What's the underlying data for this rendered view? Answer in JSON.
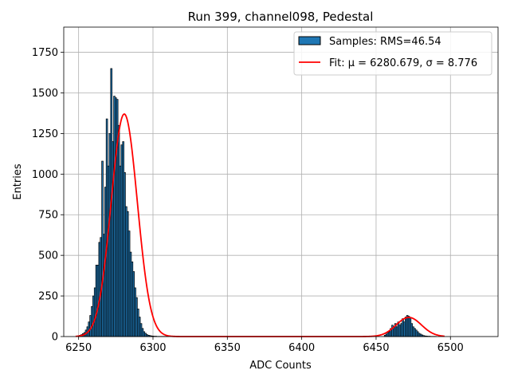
{
  "chart_data": {
    "type": "bar",
    "title": "Run 399, channel098, Pedestal",
    "xlabel": "ADC Counts",
    "ylabel": "Entries",
    "xlim": [
      6240,
      6532
    ],
    "ylim": [
      0,
      1905
    ],
    "xticks": [
      6250,
      6300,
      6350,
      6400,
      6450,
      6500
    ],
    "yticks": [
      0,
      250,
      500,
      750,
      1000,
      1250,
      1500,
      1750
    ],
    "grid": true,
    "legend_position": "top-right",
    "bar_color": "#1f77b4",
    "fit_color": "#ff0000",
    "bin_width": 1,
    "histogram": {
      "name": "Samples: RMS=46.54",
      "x": [
        6250,
        6251,
        6252,
        6253,
        6254,
        6255,
        6256,
        6257,
        6258,
        6259,
        6260,
        6261,
        6262,
        6263,
        6264,
        6265,
        6266,
        6267,
        6268,
        6269,
        6270,
        6271,
        6272,
        6273,
        6274,
        6275,
        6276,
        6277,
        6278,
        6279,
        6280,
        6281,
        6282,
        6283,
        6284,
        6285,
        6286,
        6287,
        6288,
        6289,
        6290,
        6291,
        6292,
        6293,
        6294,
        6295,
        6296,
        6297,
        6298,
        6299,
        6300,
        6301,
        6302,
        6303,
        6304,
        6305,
        6306,
        6307,
        6308,
        6309,
        6310,
        6456,
        6457,
        6458,
        6459,
        6460,
        6461,
        6462,
        6463,
        6464,
        6465,
        6466,
        6467,
        6468,
        6469,
        6470,
        6471,
        6472,
        6473,
        6474,
        6475,
        6476,
        6477,
        6478,
        6479,
        6480,
        6481,
        6482,
        6483,
        6484,
        6485,
        6486,
        6487,
        6488,
        6489,
        6490
      ],
      "values": [
        5,
        8,
        12,
        18,
        25,
        40,
        60,
        90,
        130,
        185,
        250,
        300,
        440,
        440,
        580,
        610,
        1080,
        630,
        920,
        1340,
        1050,
        1250,
        1650,
        1200,
        1480,
        1470,
        1460,
        1300,
        1050,
        1180,
        1200,
        1010,
        800,
        770,
        650,
        520,
        460,
        400,
        300,
        240,
        170,
        120,
        80,
        50,
        30,
        20,
        12,
        8,
        6,
        4,
        3,
        2,
        2,
        1,
        1,
        1,
        1,
        1,
        1,
        1,
        1,
        8,
        15,
        25,
        30,
        50,
        70,
        60,
        80,
        60,
        90,
        70,
        80,
        110,
        90,
        120,
        130,
        125,
        115,
        80,
        60,
        50,
        40,
        30,
        20,
        15,
        10,
        6,
        4,
        3,
        2,
        2,
        1,
        1,
        1,
        1
      ]
    },
    "fit": {
      "name": "Fit: μ = 6280.679, σ = 8.776",
      "mu": 6280.679,
      "sigma": 8.776,
      "amplitude": 1370,
      "x_range": [
        6248,
        6496
      ],
      "secondary": {
        "mu": 6472,
        "sigma": 8.5,
        "amplitude": 118
      }
    }
  }
}
